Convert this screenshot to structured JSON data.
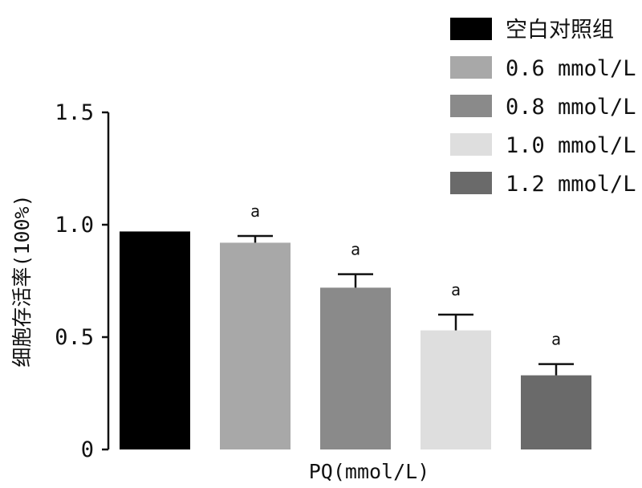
{
  "chart_data": {
    "type": "bar",
    "title": "",
    "xlabel": "PQ(mmol/L)",
    "ylabel": "细胞存活率(100%)",
    "ylim": [
      0,
      1.5
    ],
    "yticks": [
      "0",
      "0.5",
      "1.0",
      "1.5"
    ],
    "ytick_values": [
      0,
      0.5,
      1.0,
      1.5
    ],
    "categories": [
      "空白对照组",
      "0.6 mmol/L",
      "0.8 mmol/L",
      "1.0 mmol/L",
      "1.2 mmol/L"
    ],
    "values": [
      0.97,
      0.92,
      0.72,
      0.53,
      0.33
    ],
    "errors": [
      0.0,
      0.03,
      0.06,
      0.07,
      0.05
    ],
    "annotations": [
      "",
      "a",
      "a",
      "a",
      "a"
    ],
    "colors": [
      "#000000",
      "#a8a8a8",
      "#8a8a8a",
      "#dedede",
      "#6a6a6a"
    ],
    "legend_position": "top-right"
  }
}
